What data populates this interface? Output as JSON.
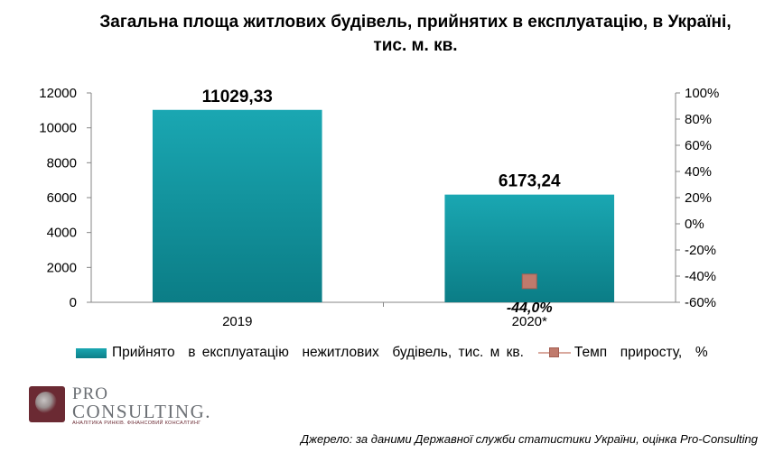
{
  "title_line1": "Загальна площа житлових будівель, прийнятих в експлуатацію, в Україні,",
  "title_line2": "тис. м. кв.",
  "chart_data": {
    "type": "bar",
    "categories": [
      "2019",
      "2020*"
    ],
    "series": [
      {
        "name": "Прийнято  в експлуатацію  нежитлових  будівель, тис. м кв.",
        "type": "bar",
        "axis": "left",
        "values": [
          11029.33,
          6173.24
        ],
        "labels": [
          "11029,33",
          "6173,24"
        ]
      },
      {
        "name": "Темп  приросту,  %",
        "type": "line",
        "axis": "right",
        "values": [
          null,
          -44.0
        ],
        "labels": [
          "",
          "-44,0%"
        ]
      }
    ],
    "ylim_left": [
      0,
      12000
    ],
    "yticks_left": [
      "12000",
      "10000",
      "8000",
      "6000",
      "4000",
      "2000",
      "0"
    ],
    "ylim_right": [
      -60,
      100
    ],
    "yticks_right": [
      "100%",
      "80%",
      "60%",
      "40%",
      "20%",
      "0%",
      "-20%",
      "-40%",
      "-60%"
    ],
    "legend_position": "bottom",
    "grid": false,
    "colors": {
      "bar": "#0e8f99",
      "bar_light": "#1aa7b2",
      "line_marker": "#c07a6c",
      "line": "#d9a99e"
    }
  },
  "logo": {
    "pro": "PRO",
    "consulting": "CONSULTING.",
    "tagline": "АНАЛІТИКА РИНКІВ. ФІНАНСОВИЙ КОНСАЛТИНГ"
  },
  "source_note": "Джерело: за даними Державної служби статистики України, оцінка Pro-Consulting"
}
